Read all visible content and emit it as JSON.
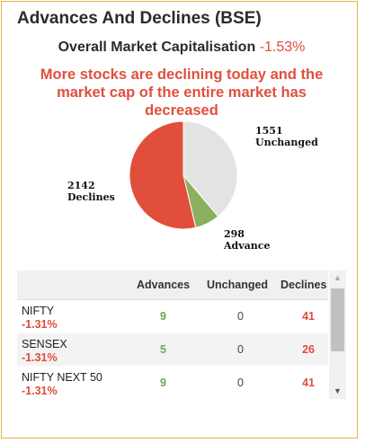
{
  "title": "Advances And Declines (BSE)",
  "subtitle": {
    "label": "Overall Market Capitalisation",
    "value": "-1.53%"
  },
  "message": "More stocks are declining today and the market cap of the entire market has decreased",
  "chart_data": {
    "type": "pie",
    "slices": [
      {
        "label": "Unchanged",
        "value": 1551,
        "color": "#e3e3e3"
      },
      {
        "label": "Advance",
        "value": 298,
        "color": "#8ab060"
      },
      {
        "label": "Declines",
        "value": 2142,
        "color": "#e14f3c"
      }
    ]
  },
  "pie_labels": {
    "unchanged": {
      "count": "1551",
      "name": "Unchanged"
    },
    "advance": {
      "count": "298",
      "name": "Advance"
    },
    "declines": {
      "count": "2142",
      "name": "Declines"
    }
  },
  "table": {
    "headers": {
      "advances": "Advances",
      "unchanged": "Unchanged",
      "declines": "Declines"
    },
    "rows": [
      {
        "name": "NIFTY",
        "pct": "-1.31%",
        "advances": "9",
        "unchanged": "0",
        "declines": "41"
      },
      {
        "name": "SENSEX",
        "pct": "-1.31%",
        "advances": "5",
        "unchanged": "0",
        "declines": "26"
      },
      {
        "name": "NIFTY NEXT 50",
        "pct": "-1.31%",
        "advances": "9",
        "unchanged": "0",
        "declines": "41"
      }
    ]
  },
  "icons": {
    "scroll_up": "arrow-up-icon",
    "scroll_down": "arrow-down-icon"
  },
  "colors": {
    "border": "#e8b04a",
    "negative": "#e04b3a",
    "positive": "#6aa84f"
  }
}
